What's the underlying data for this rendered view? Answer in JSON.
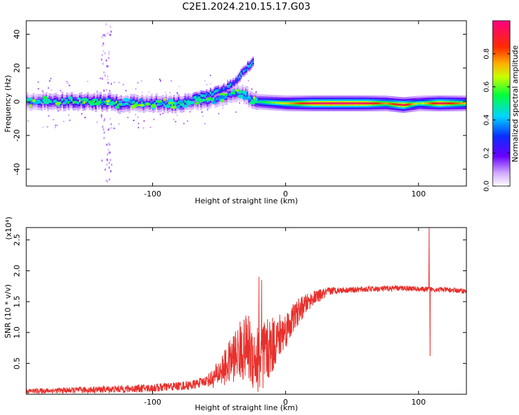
{
  "title": "C2E1.2024.210.15.17.G03",
  "chart_data": [
    {
      "type": "heatmap",
      "title": "C2E1.2024.210.15.17.G03",
      "xlabel": "Height of straight line (km)",
      "ylabel": "Frequency (Hz)",
      "xlim": [
        -195,
        136
      ],
      "ylim": [
        -50,
        48
      ],
      "x_ticks": [
        -100,
        0,
        100
      ],
      "x_tick_labels": [
        "-100",
        "0",
        "100"
      ],
      "y_ticks": [
        -40,
        -20,
        0,
        20,
        40
      ],
      "y_tick_labels": [
        "-40",
        "-20",
        "0",
        "20",
        "40"
      ],
      "colorbar": {
        "label": "Normalized spectral amplitude",
        "range": [
          0.0,
          1.0
        ],
        "ticks": [
          0.0,
          0.2,
          0.4,
          0.6,
          0.8
        ],
        "tick_labels": [
          "0.0",
          "0.2",
          "0.4",
          "0.6",
          "0.8"
        ],
        "colormap": "rainbow (white-violet-blue-cyan-green-yellow-red-magenta)"
      },
      "features": {
        "main_band": [
          {
            "x": -195,
            "f": 0,
            "a": 0.3
          },
          {
            "x": -180,
            "f": 0,
            "a": 0.45
          },
          {
            "x": -160,
            "f": 0,
            "a": 0.5
          },
          {
            "x": -140,
            "f": 0,
            "a": 0.6
          },
          {
            "x": -120,
            "f": -1,
            "a": 0.45
          },
          {
            "x": -100,
            "f": -1,
            "a": 0.4
          },
          {
            "x": -80,
            "f": -1,
            "a": 0.5
          },
          {
            "x": -60,
            "f": 1,
            "a": 0.45
          },
          {
            "x": -45,
            "f": 3,
            "a": 0.35
          },
          {
            "x": -35,
            "f": 5,
            "a": 0.3
          },
          {
            "x": -22,
            "f": 0,
            "a": 0.5
          },
          {
            "x": 0,
            "f": -1,
            "a": 0.7
          },
          {
            "x": 20,
            "f": -1,
            "a": 0.95
          },
          {
            "x": 40,
            "f": -1,
            "a": 0.98
          },
          {
            "x": 60,
            "f": -1,
            "a": 0.95
          },
          {
            "x": 75,
            "f": -1,
            "a": 0.75
          },
          {
            "x": 88,
            "f": -2,
            "a": 0.95
          },
          {
            "x": 100,
            "f": -1,
            "a": 0.6
          },
          {
            "x": 115,
            "f": -1,
            "a": 0.95
          },
          {
            "x": 136,
            "f": -1,
            "a": 0.7
          }
        ],
        "rising_branch": [
          {
            "x": -70,
            "f": 2
          },
          {
            "x": -55,
            "f": 5
          },
          {
            "x": -45,
            "f": 8
          },
          {
            "x": -38,
            "f": 12
          },
          {
            "x": -32,
            "f": 18
          },
          {
            "x": -25,
            "f": 24
          }
        ],
        "scatter_column_x": -135
      }
    },
    {
      "type": "line",
      "xlabel": "Height of straight line (km)",
      "ylabel": "SNR (10 * v/v)",
      "y_multiplier": "(x10⁴)",
      "xlim": [
        -195,
        136
      ],
      "ylim": [
        0,
        2.7
      ],
      "x_ticks": [
        -100,
        0,
        100
      ],
      "x_tick_labels": [
        "-100",
        "0",
        "100"
      ],
      "y_ticks": [
        0.5,
        1.0,
        1.5,
        2.0,
        2.5
      ],
      "y_tick_labels": [
        "0.5",
        "1.0",
        "1.5",
        "2.0",
        "2.5"
      ],
      "series": [
        {
          "name": "SNR",
          "color": "#e8302c",
          "trend": [
            {
              "x": -195,
              "y": 0.05
            },
            {
              "x": -150,
              "y": 0.07
            },
            {
              "x": -100,
              "y": 0.1
            },
            {
              "x": -70,
              "y": 0.15
            },
            {
              "x": -55,
              "y": 0.25
            },
            {
              "x": -45,
              "y": 0.45
            },
            {
              "x": -35,
              "y": 0.7
            },
            {
              "x": -28,
              "y": 0.75
            },
            {
              "x": -22,
              "y": 0.55
            },
            {
              "x": -15,
              "y": 0.65
            },
            {
              "x": -8,
              "y": 0.85
            },
            {
              "x": 0,
              "y": 1.05
            },
            {
              "x": 10,
              "y": 1.35
            },
            {
              "x": 20,
              "y": 1.55
            },
            {
              "x": 35,
              "y": 1.68
            },
            {
              "x": 60,
              "y": 1.7
            },
            {
              "x": 90,
              "y": 1.72
            },
            {
              "x": 103,
              "y": 1.7
            },
            {
              "x": 115,
              "y": 1.7
            },
            {
              "x": 136,
              "y": 1.67
            }
          ],
          "spikes": [
            {
              "x": -20,
              "y": 1.9
            },
            {
              "x": -18,
              "y": 1.85
            },
            {
              "x": -17,
              "y": 0.1
            },
            {
              "x": 108,
              "y": 2.72
            },
            {
              "x": 108.7,
              "y": 0.62
            }
          ],
          "noise_amplitude": [
            {
              "x": -195,
              "a": 0.04
            },
            {
              "x": -60,
              "a": 0.08
            },
            {
              "x": -45,
              "a": 0.3
            },
            {
              "x": -30,
              "a": 0.55
            },
            {
              "x": -18,
              "a": 0.6
            },
            {
              "x": 0,
              "a": 0.3
            },
            {
              "x": 20,
              "a": 0.12
            },
            {
              "x": 40,
              "a": 0.05
            },
            {
              "x": 136,
              "a": 0.04
            }
          ]
        }
      ]
    }
  ]
}
